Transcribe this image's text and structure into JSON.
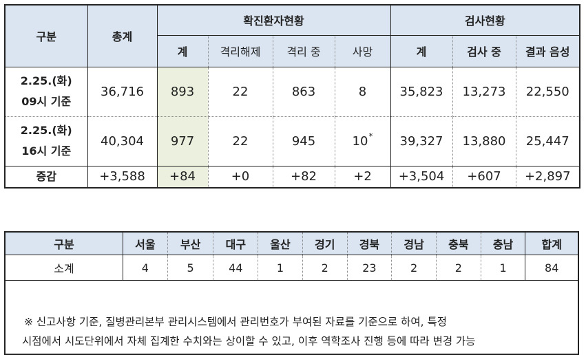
{
  "table1": {
    "headers": {
      "category": "구분",
      "total": "총계",
      "confirmed_group": "확진환자현황",
      "test_group": "검사현황",
      "confirmed_cols": [
        "계",
        "격리해제",
        "격리 중",
        "사망"
      ],
      "test_cols": [
        "계",
        "검사 중",
        "결과 음성"
      ]
    },
    "rows": [
      {
        "label_line1": "2.25.(화)",
        "label_line2": "09시 기준",
        "total": "36,716",
        "confirmed_sum": "893",
        "released": "22",
        "isolated": "863",
        "deaths": "8",
        "deaths_mark": "",
        "test_sum": "35,823",
        "testing": "13,273",
        "negative": "22,550"
      },
      {
        "label_line1": "2.25.(화)",
        "label_line2": "16시 기준",
        "total": "40,304",
        "confirmed_sum": "977",
        "released": "22",
        "isolated": "945",
        "deaths": "10",
        "deaths_mark": "*",
        "test_sum": "39,327",
        "testing": "13,880",
        "negative": "25,447"
      },
      {
        "label_line1": "증감",
        "total": "+3,588",
        "confirmed_sum": "+84",
        "released": "+0",
        "isolated": "+82",
        "deaths": "+2",
        "test_sum": "+3,504",
        "testing": "+607",
        "negative": "+2,897"
      }
    ]
  },
  "table2": {
    "headers": [
      "구분",
      "서울",
      "부산",
      "대구",
      "울산",
      "경기",
      "경북",
      "경남",
      "충북",
      "충남",
      "합계"
    ],
    "row": [
      "소계",
      "4",
      "5",
      "44",
      "1",
      "2",
      "23",
      "2",
      "2",
      "1",
      "84"
    ]
  },
  "note": {
    "line1": "※ 신고사항 기준, 질병관리본부 관리시스템에서 관리번호가 부여된 자료를 기준으로 하여, 특정",
    "line2": "시점에서 시도단위에서 자체 집계한 수치와는 상이할 수 있고, 이후 역학조사 진행 등에 따라 변경 가능"
  },
  "colors": {
    "header_bg": "#dbe5f1",
    "highlight_bg": "#ebf1de",
    "border": "#222222"
  }
}
